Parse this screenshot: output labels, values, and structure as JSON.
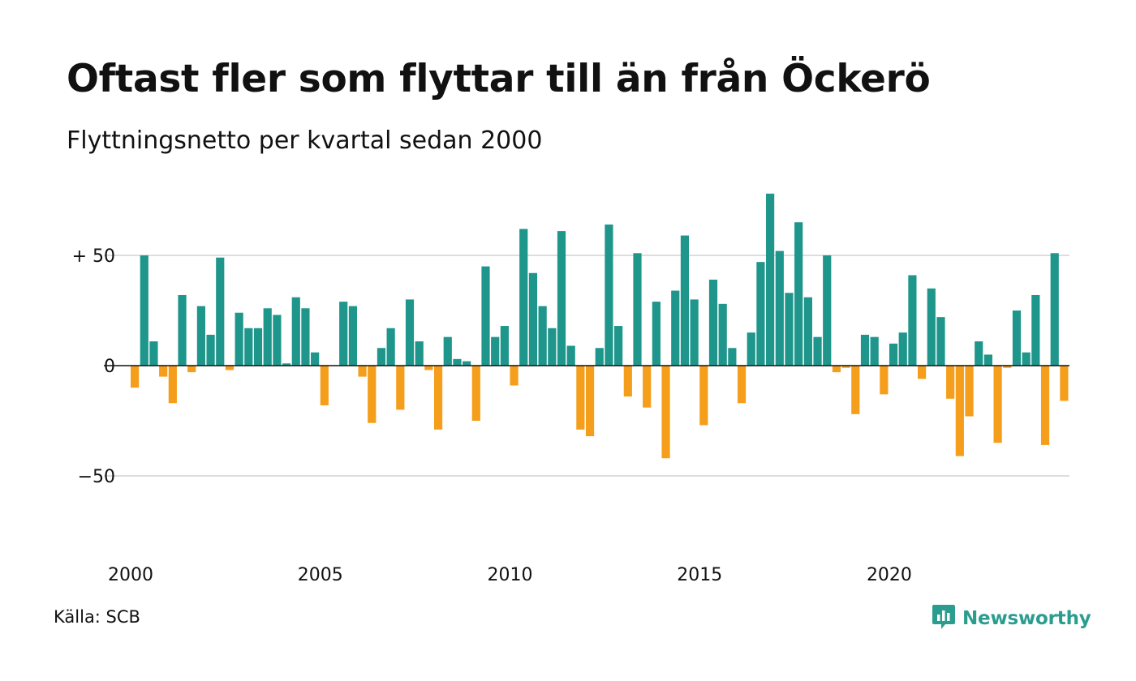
{
  "title": "Oftast fler som flyttar till än från Öckerö",
  "subtitle": "Flyttningsnetto per kvartal sedan 2000",
  "source": "Källa: SCB",
  "brand": {
    "name": "Newsworthy",
    "icon": "newsworthy-logo-icon",
    "color": "#2a9d8f"
  },
  "chart_data": {
    "type": "bar",
    "title": "Oftast fler som flyttar till än från Öckerö",
    "subtitle": "Flyttningsnetto per kvartal sedan 2000",
    "xlabel": "",
    "ylabel": "",
    "x_start": "2000",
    "period": "quarter",
    "x_ticks": [
      "2000",
      "2005",
      "2010",
      "2015",
      "2020"
    ],
    "y_ticks": [
      {
        "value": 50,
        "label": "+ 50"
      },
      {
        "value": 0,
        "label": "0"
      },
      {
        "value": -50,
        "label": "−50"
      }
    ],
    "ylim": [
      -80,
      80
    ],
    "grid": true,
    "colors": {
      "positive": "#1f968b",
      "negative": "#f59e1b",
      "grid": "#dddddd",
      "zero": "#111111"
    },
    "series": [
      {
        "values": [
          -10,
          50,
          11,
          -5,
          -17,
          32,
          -3,
          27,
          14,
          49,
          -2,
          24,
          17,
          17,
          26,
          23,
          1,
          31,
          26,
          6,
          -18,
          0,
          29,
          27,
          -5,
          -26,
          8,
          17,
          -20,
          30,
          11,
          -2,
          -29,
          13,
          3,
          2,
          -25,
          45,
          13,
          18,
          -9,
          62,
          42,
          27,
          17,
          61,
          9,
          -29,
          -32,
          8,
          64,
          18,
          -14,
          51,
          -19,
          29,
          -42,
          34,
          59,
          30,
          -27,
          39,
          28,
          8,
          -17,
          15,
          47,
          78,
          52,
          33,
          65,
          31,
          13,
          50,
          -3,
          -1,
          -22,
          14,
          13,
          -13,
          10,
          15,
          41,
          -6,
          35,
          22,
          -15,
          -41,
          -23,
          11,
          5,
          -35,
          -1,
          25,
          6,
          32,
          -36,
          51,
          -16
        ]
      }
    ]
  }
}
